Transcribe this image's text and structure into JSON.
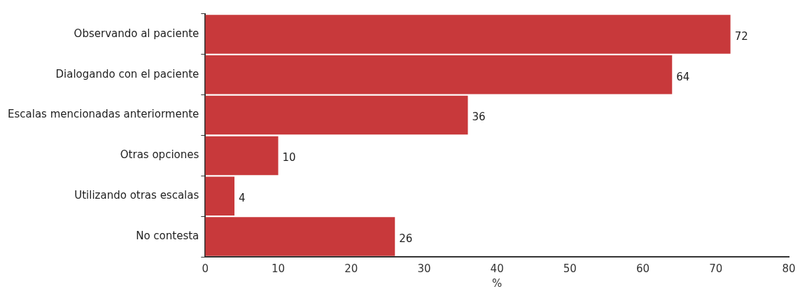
{
  "chart_data": {
    "type": "bar",
    "orientation": "horizontal",
    "xlabel": "%",
    "categories": [
      "Observando al paciente",
      "Dialogando con el paciente",
      "Escalas mencionadas anteriormente",
      "Otras opciones",
      "Utilizando otras escalas",
      "No contesta"
    ],
    "values": [
      72,
      64,
      36,
      10,
      4,
      26
    ],
    "color": "#c8393b",
    "xlim": [
      0,
      80
    ],
    "xticks": [
      0,
      10,
      20,
      30,
      40,
      50,
      60,
      70,
      80
    ],
    "grid": false,
    "data_labels": true
  }
}
